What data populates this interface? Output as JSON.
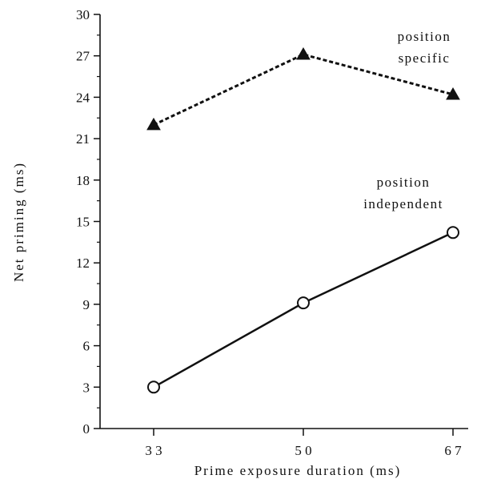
{
  "chart_data": {
    "type": "line",
    "title": "",
    "xlabel": "Prime  exposure  duration  (ms)",
    "ylabel": "Net  priming  (ms)",
    "categories": [
      "33",
      "50",
      "67"
    ],
    "category_labels": [
      "3 3",
      "5 0",
      "6 7"
    ],
    "ylim": [
      0,
      30
    ],
    "yticks": [
      0,
      3,
      6,
      9,
      12,
      15,
      18,
      21,
      24,
      27,
      30
    ],
    "grid": false,
    "series": [
      {
        "name": "position specific",
        "label_lines": [
          "position",
          "specific"
        ],
        "values": [
          22.0,
          27.1,
          24.2
        ],
        "marker": "filled-triangle",
        "line_style": "dashed"
      },
      {
        "name": "position independent",
        "label_lines": [
          "position",
          "independent"
        ],
        "values": [
          3.0,
          9.1,
          14.2
        ],
        "marker": "open-circle",
        "line_style": "solid"
      }
    ]
  }
}
